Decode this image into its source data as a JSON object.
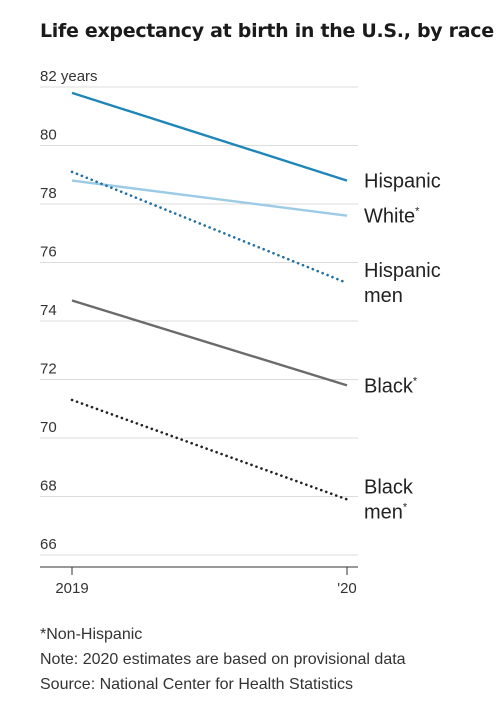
{
  "chart_data": {
    "type": "line",
    "title": "Life expectancy at birth in the U.S., by race",
    "x": [
      "2019",
      "'20"
    ],
    "ylim": [
      66,
      82
    ],
    "yticks": [
      66,
      68,
      70,
      72,
      74,
      76,
      78,
      80,
      82
    ],
    "ytick_unit": "years",
    "grid": true,
    "series": [
      {
        "name": "Hispanic",
        "values": [
          81.8,
          78.8
        ],
        "color": "#1f86b8",
        "style": "solid"
      },
      {
        "name": "White",
        "marker": "*",
        "values": [
          78.8,
          77.6
        ],
        "color": "#9ccbe6",
        "style": "solid"
      },
      {
        "name": "Hispanic men",
        "values": [
          79.1,
          75.3
        ],
        "color": "#1f6fa3",
        "style": "dotted"
      },
      {
        "name": "Black",
        "marker": "*",
        "values": [
          74.7,
          71.8
        ],
        "color": "#6b6b6b",
        "style": "solid"
      },
      {
        "name": "Black men",
        "marker": "*",
        "values": [
          71.3,
          67.9
        ],
        "color": "#222222",
        "style": "dotted"
      }
    ],
    "footnotes": [
      "*Non-Hispanic",
      "Note: 2020 estimates are based on provisional data",
      "Source: National Center for Health Statistics"
    ]
  }
}
